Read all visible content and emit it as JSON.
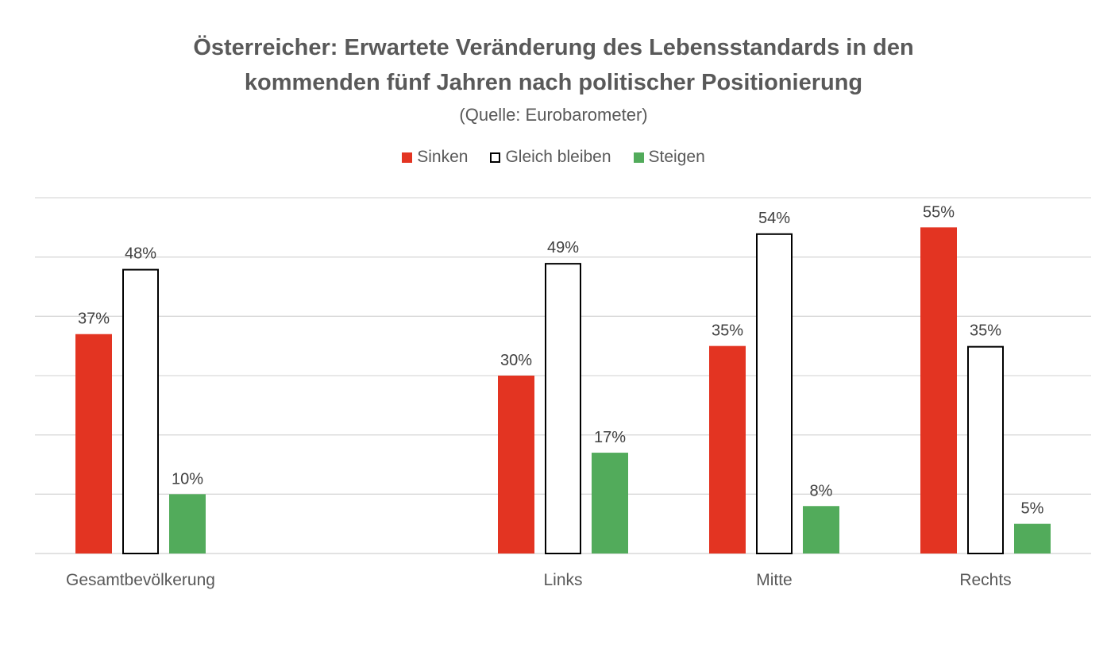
{
  "chart_data": {
    "type": "bar",
    "title": "Österreicher: Erwartete Veränderung des Lebensstandards in den",
    "title_line2": "kommenden fünf Jahren nach politischer Positionierung",
    "subtitle": "(Quelle: Eurobarometer)",
    "categories": [
      "Gesamtbevölkerung",
      "",
      "Links",
      "Mitte",
      "Rechts"
    ],
    "series": [
      {
        "name": "Sinken",
        "color": "#E33422",
        "values": [
          37,
          null,
          30,
          35,
          55
        ]
      },
      {
        "name": "Gleich bleiben",
        "color": "#FFFFFF",
        "stroke": "#000000",
        "values": [
          48,
          null,
          49,
          54,
          35
        ]
      },
      {
        "name": "Steigen",
        "color": "#52AB5B",
        "values": [
          10,
          null,
          17,
          8,
          5
        ]
      }
    ],
    "ylim": [
      0,
      60
    ],
    "yticks": [
      0,
      10,
      20,
      30,
      40,
      50,
      60
    ],
    "value_suffix": "%",
    "grid": true,
    "legend_position": "top"
  }
}
